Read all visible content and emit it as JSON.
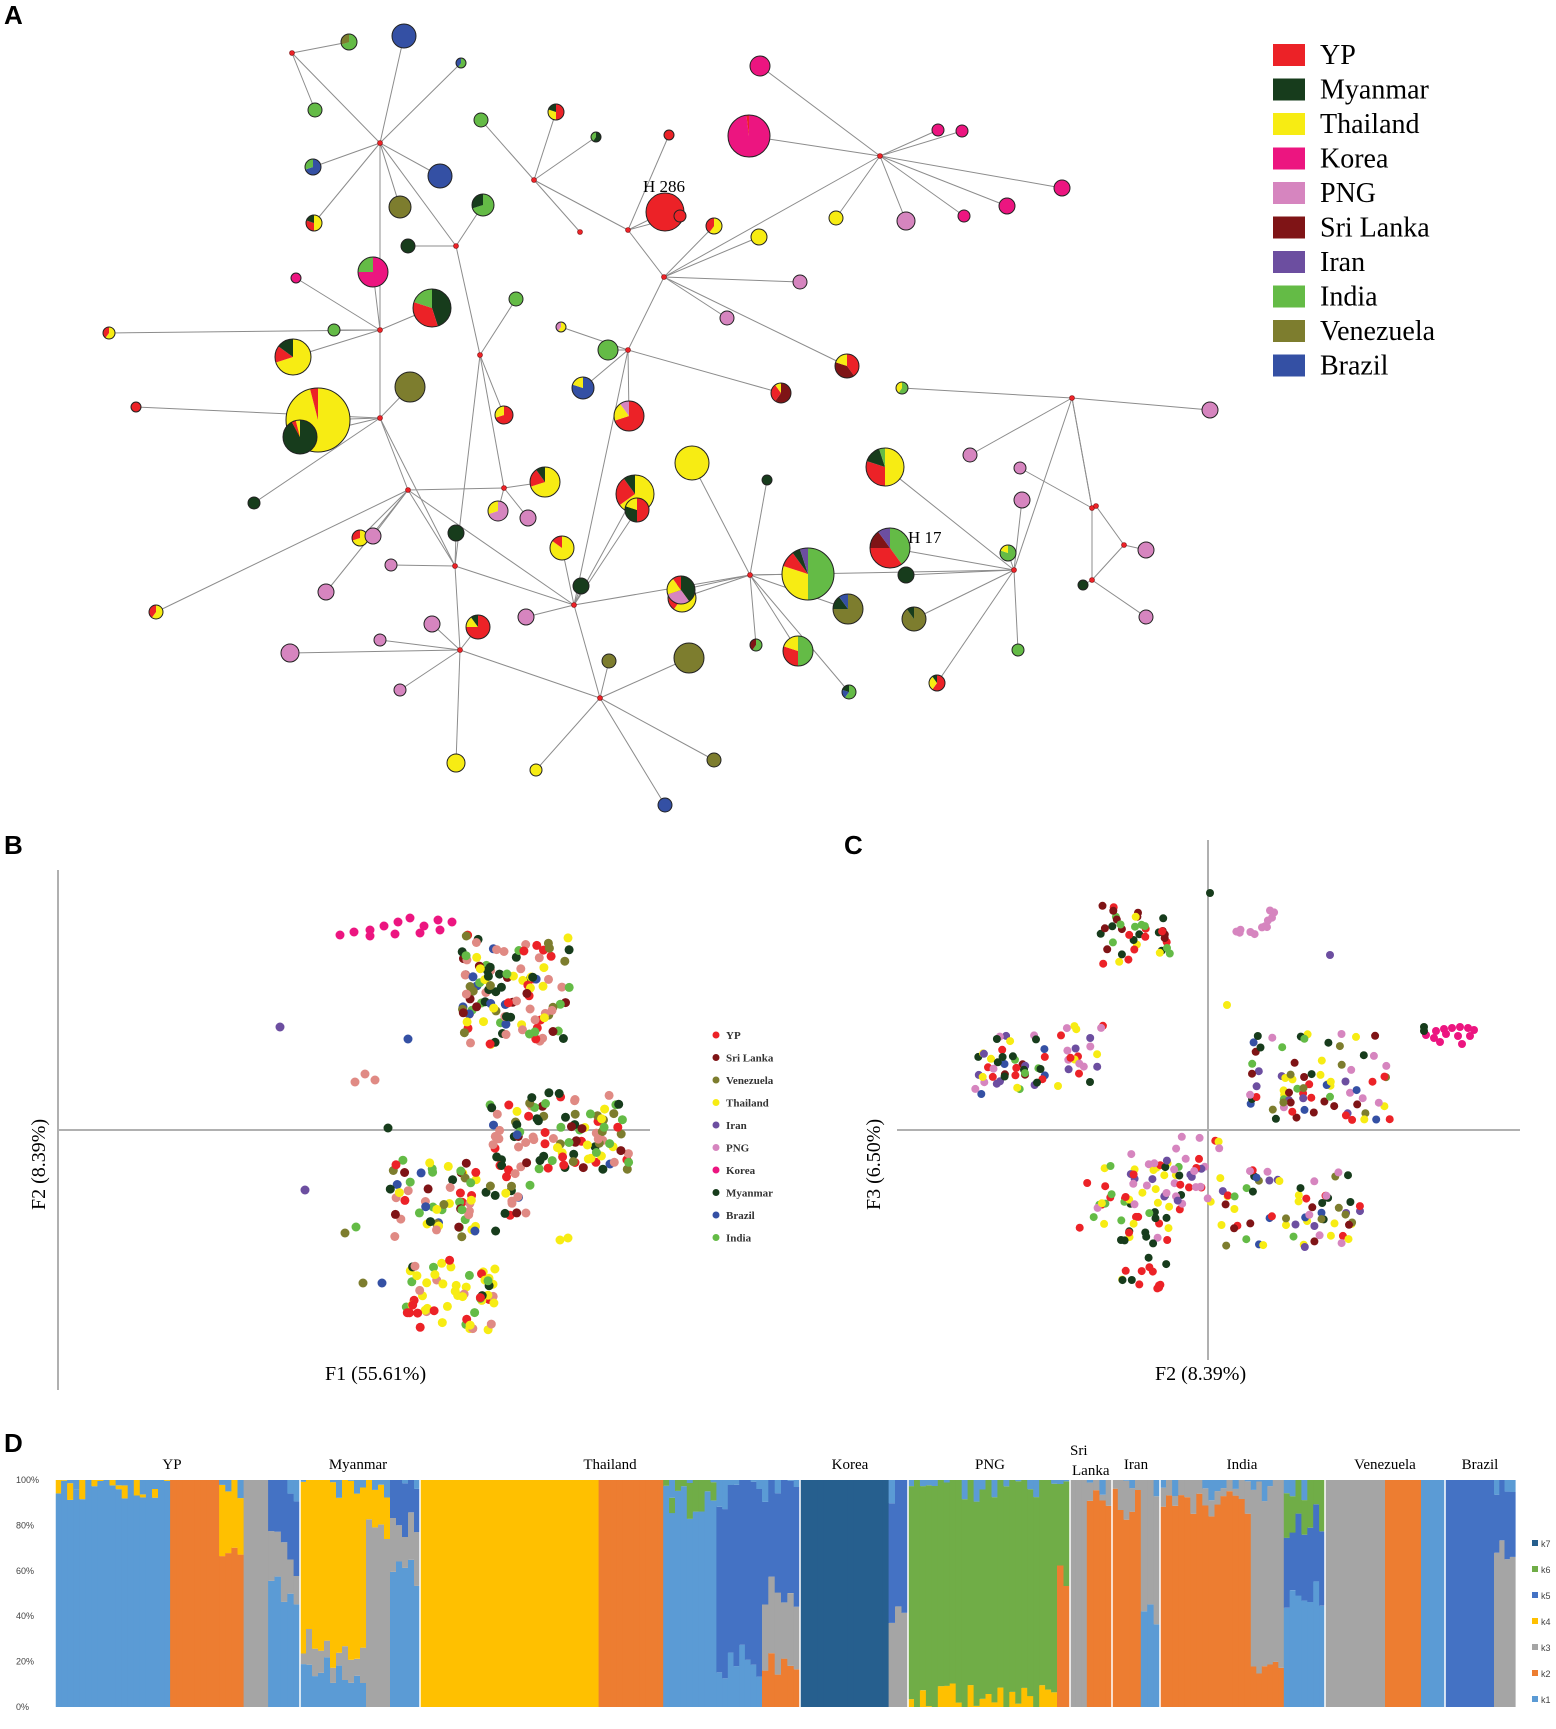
{
  "panel_labels": {
    "a": "A",
    "b": "B",
    "c": "C",
    "d": "D"
  },
  "colors": {
    "YP": "#ec2227",
    "Myanmar": "#173c1c",
    "Thailand": "#f7ec13",
    "Korea": "#ec1580",
    "PNG": "#d685bf",
    "Sri Lanka": "#7f1416",
    "Iran": "#6c4ea0",
    "India": "#64bb46",
    "Venezuela": "#7d7d2e",
    "Brazil": "#3450a4",
    "PNG_b": "#e08a84"
  },
  "chart_data": [
    {
      "type": "network",
      "panel": "A",
      "title": "",
      "legend": [
        "YP",
        "Myanmar",
        "Thailand",
        "Korea",
        "PNG",
        "Sri Lanka",
        "Iran",
        "India",
        "Venezuela",
        "Brazil"
      ],
      "annotations": [
        "H 286",
        "H 17"
      ]
    },
    {
      "type": "scatter",
      "panel": "B",
      "xlabel": "F1 (55.61%)",
      "ylabel": "F2 (8.39%)",
      "legend": [
        "YP",
        "Sri Lanka",
        "Venezuela",
        "Thailand",
        "Iran",
        "PNG",
        "Korea",
        "Myanmar",
        "Brazil",
        "India"
      ],
      "xlim": [
        -10,
        10
      ],
      "ylim": [
        -10,
        10
      ]
    },
    {
      "type": "scatter",
      "panel": "C",
      "xlabel": "F2 (8.39%)",
      "ylabel": "F3 (6.50%)",
      "xlim": [
        -10,
        10
      ],
      "ylim": [
        -10,
        10
      ]
    },
    {
      "type": "bar",
      "panel": "D",
      "stacked": true,
      "groups": [
        "YP",
        "Myanmar",
        "Thailand",
        "Korea",
        "PNG",
        "Sri Lanka",
        "Iran",
        "India",
        "Venezuela",
        "Brazil"
      ],
      "yticks": [
        "100%",
        "80%",
        "60%",
        "40%",
        "20%",
        "0%"
      ],
      "clusters": [
        "k7",
        "k6",
        "k5",
        "k4",
        "k3",
        "k2",
        "k1"
      ],
      "cluster_colors": [
        "#265f8e",
        "#70ad47",
        "#4472c4",
        "#ffc000",
        "#a5a5a5",
        "#ed7d31",
        "#5b9bd5"
      ]
    }
  ]
}
